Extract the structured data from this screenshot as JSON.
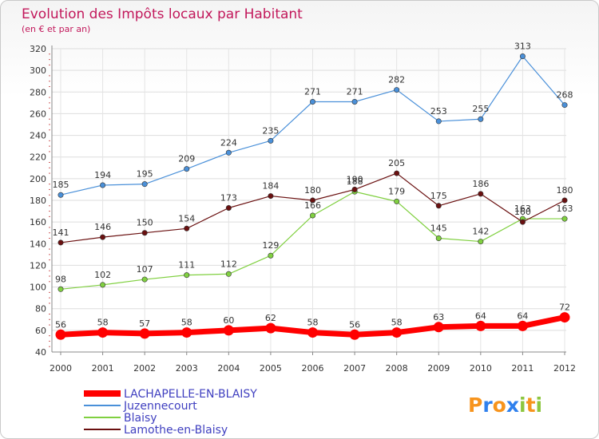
{
  "chart_data": {
    "type": "line",
    "title": "Evolution des Impôts locaux par Habitant",
    "subtitle": "(en € et par an)",
    "xlabel": "",
    "ylabel": "",
    "categories": [
      "2000",
      "2001",
      "2002",
      "2003",
      "2004",
      "2005",
      "2006",
      "2007",
      "2008",
      "2009",
      "2010",
      "2011",
      "2012"
    ],
    "ylim": [
      40,
      320
    ],
    "yticks": [
      40,
      60,
      80,
      100,
      120,
      140,
      160,
      180,
      200,
      220,
      240,
      260,
      280,
      300,
      320
    ],
    "grid": true,
    "legend_position": "bottom-left",
    "series": [
      {
        "name": "LACHAPELLE-EN-BLAISY",
        "color": "#ff0000",
        "values": [
          56,
          58,
          57,
          58,
          60,
          62,
          58,
          56,
          58,
          63,
          64,
          64,
          72
        ]
      },
      {
        "name": "Juzennecourt",
        "color": "#4a90d9",
        "values": [
          185,
          194,
          195,
          209,
          224,
          235,
          271,
          271,
          282,
          253,
          255,
          313,
          268
        ]
      },
      {
        "name": "Blaisy",
        "color": "#80d040",
        "values": [
          98,
          102,
          107,
          111,
          112,
          129,
          166,
          188,
          179,
          145,
          142,
          163,
          163
        ]
      },
      {
        "name": "Lamothe-en-Blaisy",
        "color": "#6a1010",
        "values": [
          141,
          146,
          150,
          154,
          173,
          184,
          180,
          190,
          205,
          175,
          186,
          160,
          180
        ]
      }
    ]
  },
  "logo": {
    "letters": [
      "P",
      "r",
      "o",
      "x",
      "i",
      "t",
      "i"
    ],
    "colors": [
      "#f7941d",
      "#2f80ed",
      "#f7941d",
      "#2f80ed",
      "#8dc63f",
      "#f7941d",
      "#8dc63f"
    ]
  }
}
